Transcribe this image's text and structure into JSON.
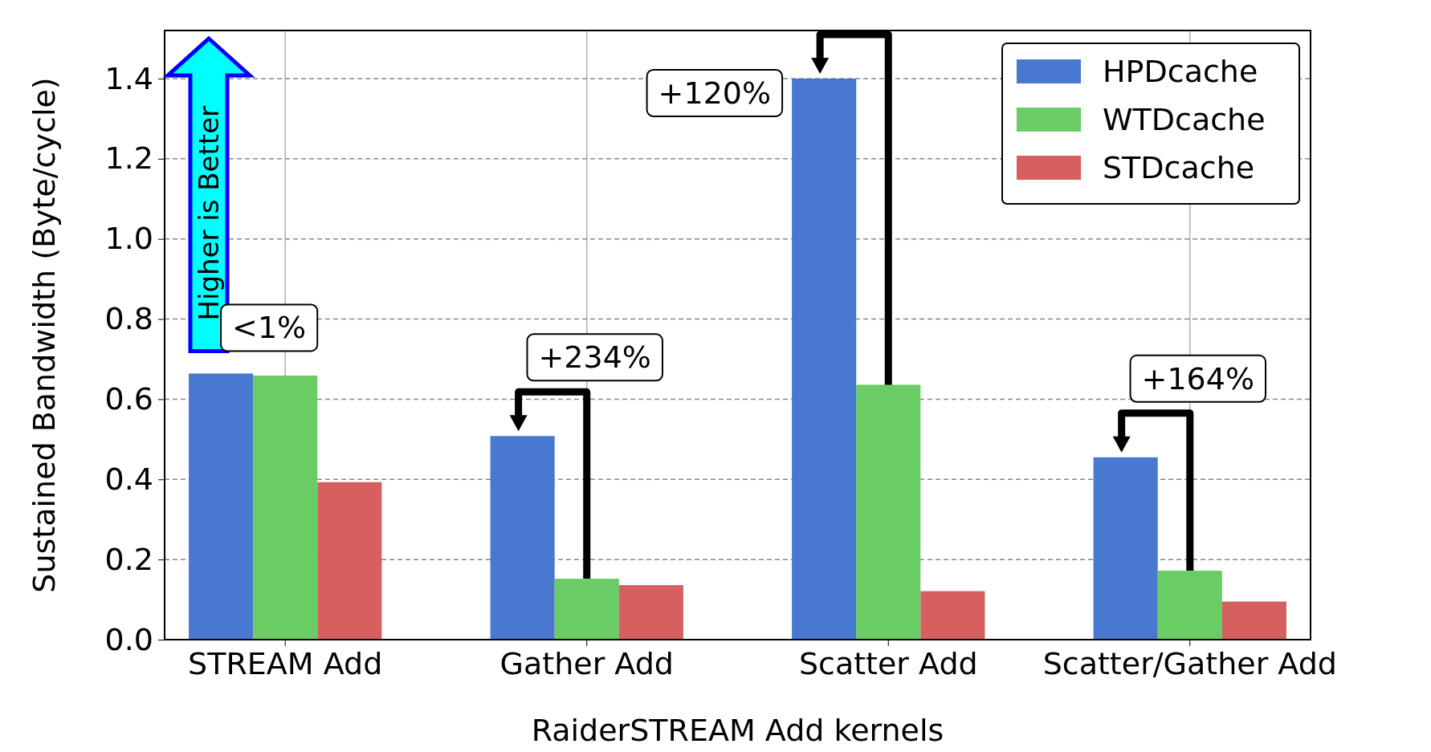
{
  "chart_data": {
    "type": "bar",
    "xlabel": "RaiderSTREAM Add kernels",
    "ylabel": "Sustained Bandwidth (Byte/cycle)",
    "categories": [
      "STREAM Add",
      "Gather Add",
      "Scatter Add",
      "Scatter/Gather Add"
    ],
    "series": [
      {
        "name": "HPDcache",
        "color": "#4878d0",
        "values": [
          0.664,
          0.508,
          1.4,
          0.455
        ]
      },
      {
        "name": "WTDcache",
        "color": "#6acc64",
        "values": [
          0.659,
          0.152,
          0.636,
          0.172
        ]
      },
      {
        "name": "STDcache",
        "color": "#d65f5f",
        "values": [
          0.393,
          0.136,
          0.121,
          0.095
        ]
      }
    ],
    "ylim": [
      0,
      1.52
    ],
    "yticks": [
      {
        "value": 0,
        "label": "0.0"
      },
      0.2,
      0.4,
      0.6,
      0.8,
      {
        "value": 1,
        "label": "1.0"
      },
      1.2,
      1.4
    ],
    "grid": true,
    "legend": "top right",
    "annotations": [
      "Higher is Better",
      "<1%",
      "+234%",
      "+120%",
      "+164%"
    ]
  }
}
